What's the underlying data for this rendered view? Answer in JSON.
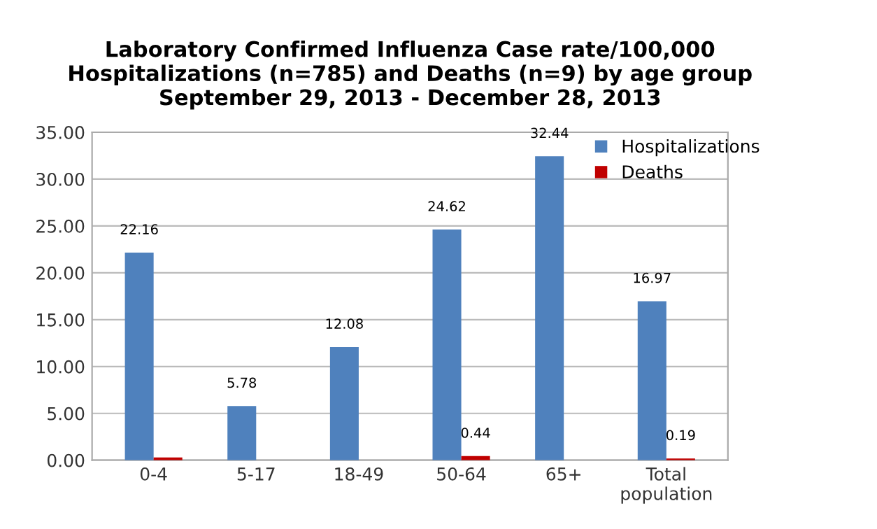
{
  "chart_data": {
    "type": "bar",
    "title": "Laboratory Confirmed Influenza Case rate/100,000\nHospitalizations (n=785) and Deaths (n=9) by age group\nSeptember 29, 2013 - December 28, 2013",
    "categories": [
      "0-4",
      "5-17",
      "18-49",
      "50-64",
      "65+",
      "Total\npopulation"
    ],
    "series": [
      {
        "name": "Hospitalizations",
        "color": "#4f81bd",
        "values": [
          22.16,
          5.78,
          12.08,
          24.62,
          32.44,
          16.97
        ],
        "value_labels": [
          "22.16",
          "5.78",
          "12.08",
          "24.62",
          "32.44",
          "16.97"
        ]
      },
      {
        "name": "Deaths",
        "color": "#c00000",
        "values": [
          0.3,
          0,
          null,
          0.44,
          null,
          0.19
        ],
        "value_labels": [
          null,
          null,
          null,
          "0.44",
          null,
          "0.19"
        ]
      }
    ],
    "ylim": [
      0,
      35
    ],
    "yticks": [
      {
        "value": 0,
        "label": "0.00"
      },
      {
        "value": 5,
        "label": "5.00"
      },
      {
        "value": 10,
        "label": "10.00"
      },
      {
        "value": 15,
        "label": "15.00"
      },
      {
        "value": 20,
        "label": "20.00"
      },
      {
        "value": 25,
        "label": "25.00"
      },
      {
        "value": 30,
        "label": "30.00"
      },
      {
        "value": 35,
        "label": "35.00"
      }
    ],
    "grid": "y",
    "legend": "top right"
  }
}
